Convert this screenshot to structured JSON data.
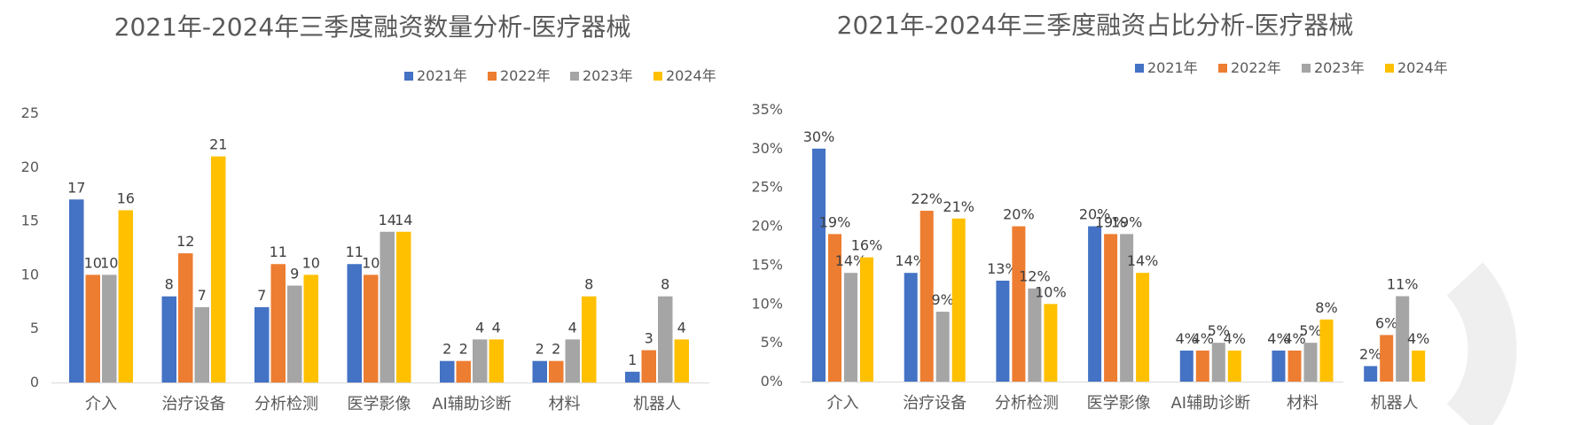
{
  "colors": {
    "c2021": "#4472C4",
    "c2022": "#ED7D31",
    "c2023": "#A5A5A5",
    "c2024": "#FFC000"
  },
  "chart_data": [
    {
      "type": "bar",
      "title": "2021年-2024年三季度融资数量分析-医疗器械",
      "categories": [
        "介入",
        "治疗设备",
        "分析检测",
        "医学影像",
        "AI辅助诊断",
        "材料",
        "机器人"
      ],
      "series": [
        {
          "name": "2021年",
          "values": [
            17,
            8,
            7,
            11,
            2,
            2,
            1
          ]
        },
        {
          "name": "2022年",
          "values": [
            10,
            12,
            11,
            10,
            2,
            2,
            3
          ]
        },
        {
          "name": "2023年",
          "values": [
            10,
            7,
            9,
            14,
            4,
            4,
            8
          ]
        },
        {
          "name": "2024年",
          "values": [
            16,
            21,
            10,
            14,
            4,
            8,
            4
          ]
        }
      ],
      "data_labels": [
        [
          "17",
          "8",
          "7",
          "11",
          "2",
          "2",
          "1"
        ],
        [
          "10",
          "12",
          "11",
          "10",
          "2",
          "2",
          "3"
        ],
        [
          "10",
          "7",
          "9",
          "14",
          "4",
          "4",
          "8"
        ],
        [
          "16",
          "21",
          "10",
          "14",
          "4",
          "8",
          "4"
        ]
      ],
      "ylim": [
        0,
        25
      ],
      "yticks": [
        0,
        5,
        10,
        15,
        20,
        25
      ],
      "ytick_labels": [
        "0",
        "5",
        "10",
        "15",
        "20",
        "25"
      ],
      "grid": false,
      "legend_position": "top-right"
    },
    {
      "type": "bar",
      "title": "2021年-2024年三季度融资占比分析-医疗器械",
      "categories": [
        "介入",
        "治疗设备",
        "分析检测",
        "医学影像",
        "AI辅助诊断",
        "材料",
        "机器人"
      ],
      "series": [
        {
          "name": "2021年",
          "values": [
            30,
            14,
            13,
            20,
            4,
            4,
            2
          ]
        },
        {
          "name": "2022年",
          "values": [
            19,
            22,
            20,
            19,
            4,
            4,
            6
          ]
        },
        {
          "name": "2023年",
          "values": [
            14,
            9,
            12,
            19,
            5,
            5,
            11
          ]
        },
        {
          "name": "2024年",
          "values": [
            16,
            21,
            10,
            14,
            4,
            8,
            4
          ]
        }
      ],
      "data_labels": [
        [
          "30%",
          "14%",
          "13%",
          "20%",
          "4%",
          "4%",
          "2%"
        ],
        [
          "19%",
          "22%",
          "20%",
          "19%",
          "4%",
          "4%",
          "6%"
        ],
        [
          "14%",
          "9%",
          "12%",
          "19%",
          "5%",
          "5%",
          "11%"
        ],
        [
          "16%",
          "21%",
          "10%",
          "14%",
          "4%",
          "8%",
          "4%"
        ]
      ],
      "ylim": [
        0,
        35
      ],
      "yticks": [
        0,
        5,
        10,
        15,
        20,
        25,
        30,
        35
      ],
      "ytick_labels": [
        "0%",
        "5%",
        "10%",
        "15%",
        "20%",
        "25%",
        "30%",
        "35%"
      ],
      "grid": false,
      "legend_position": "top-right"
    }
  ]
}
